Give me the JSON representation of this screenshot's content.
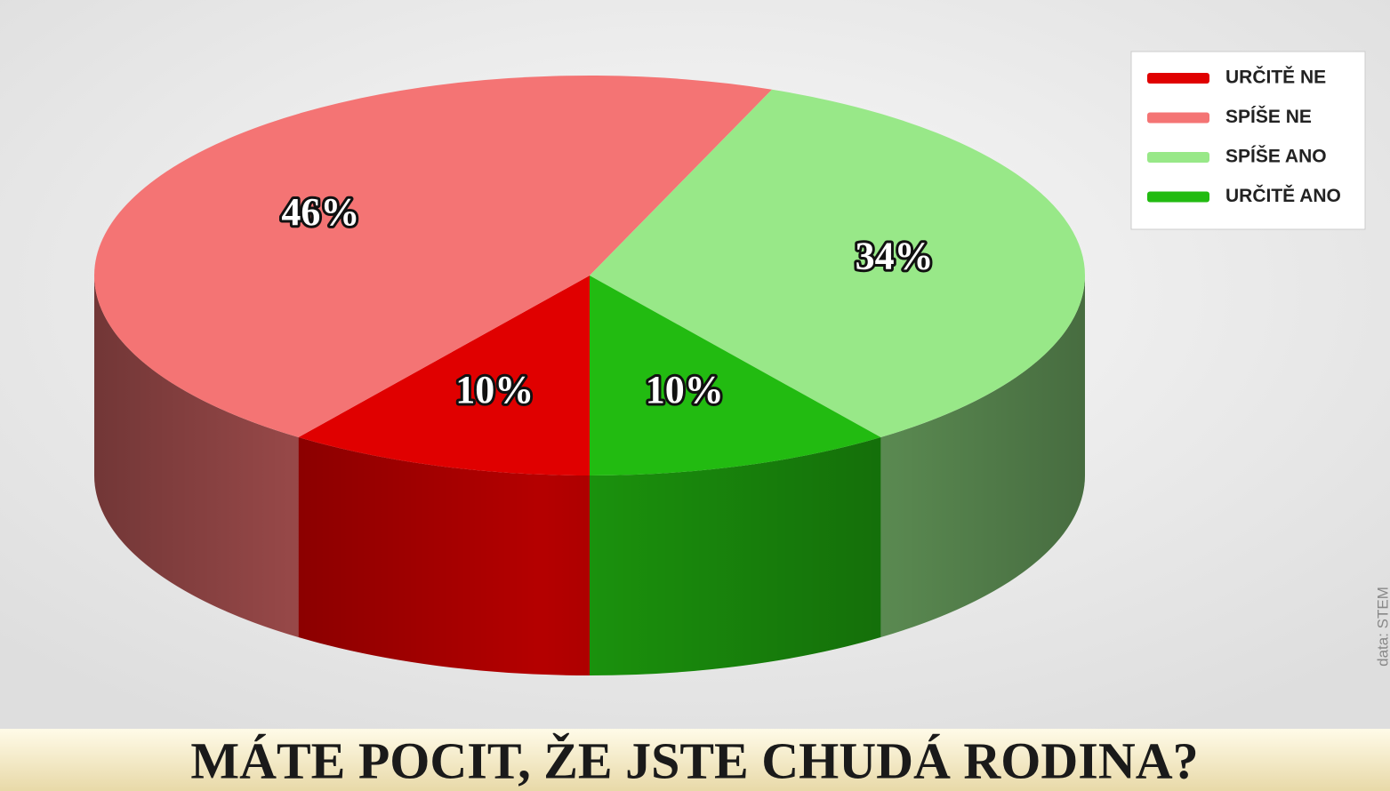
{
  "chart_data": {
    "type": "pie3d",
    "title": "MÁTE POCIT, ŽE JSTE CHUDÁ RODINA?",
    "note": "data: STEM",
    "categories": [
      "URČITĚ NE",
      "SPÍŠE NE",
      "SPÍŠE ANO",
      "URČITĚ ANO"
    ],
    "values": [
      10,
      46,
      34,
      10
    ],
    "value_labels": [
      "10%",
      "46%",
      "34%",
      "10%"
    ],
    "colors": [
      "#e00000",
      "#f47474",
      "#98e888",
      "#22bb11"
    ],
    "legend": "top-right"
  }
}
